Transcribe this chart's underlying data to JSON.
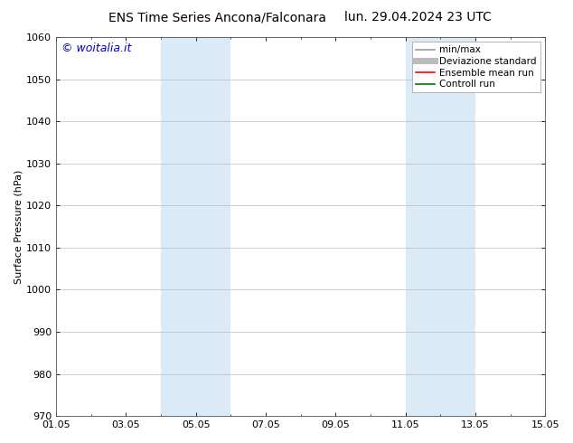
{
  "title_left": "ENS Time Series Ancona/Falconara",
  "title_right": "lun. 29.04.2024 23 UTC",
  "ylabel": "Surface Pressure (hPa)",
  "ylim": [
    970,
    1060
  ],
  "yticks": [
    970,
    980,
    990,
    1000,
    1010,
    1020,
    1030,
    1040,
    1050,
    1060
  ],
  "xlim": [
    0,
    14
  ],
  "xtick_labels": [
    "01.05",
    "03.05",
    "05.05",
    "07.05",
    "09.05",
    "11.05",
    "13.05",
    "15.05"
  ],
  "xtick_positions": [
    0,
    2,
    4,
    6,
    8,
    10,
    12,
    14
  ],
  "shaded_bands": [
    {
      "x_start": 3.0,
      "x_end": 5.0,
      "color": "#dbeaf7"
    },
    {
      "x_start": 10.0,
      "x_end": 12.0,
      "color": "#dbeaf7"
    }
  ],
  "watermark": "© woitalia.it",
  "watermark_color": "#0000cc",
  "legend_entries": [
    {
      "label": "min/max",
      "color": "#999999",
      "linewidth": 1.2,
      "linestyle": "-"
    },
    {
      "label": "Deviazione standard",
      "color": "#bbbbbb",
      "linewidth": 5,
      "linestyle": "-"
    },
    {
      "label": "Ensemble mean run",
      "color": "#ff0000",
      "linewidth": 1.2,
      "linestyle": "-"
    },
    {
      "label": "Controll run",
      "color": "#007700",
      "linewidth": 1.2,
      "linestyle": "-"
    }
  ],
  "background_color": "#ffffff",
  "grid_color": "#bbbbbb",
  "title_fontsize": 10,
  "axis_fontsize": 8,
  "tick_fontsize": 8,
  "legend_fontsize": 7.5,
  "watermark_fontsize": 9
}
